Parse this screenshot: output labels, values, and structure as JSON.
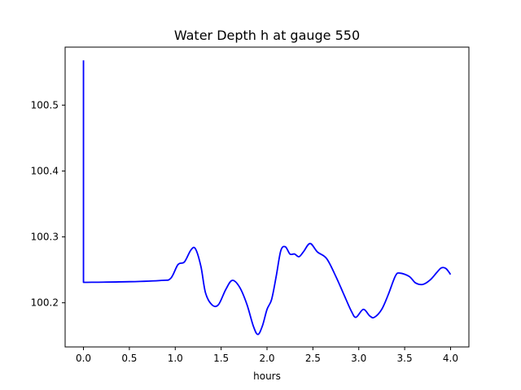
{
  "chart_data": {
    "type": "line",
    "title": "Water Depth h at gauge 550",
    "xlabel": "hours",
    "ylabel": "",
    "xlim": [
      -0.2,
      4.2
    ],
    "ylim": [
      100.133,
      100.588
    ],
    "grid": false,
    "legend": "none",
    "xticks": [
      0.0,
      0.5,
      1.0,
      1.5,
      2.0,
      2.5,
      3.0,
      3.5,
      4.0
    ],
    "xtick_labels": [
      "0.0",
      "0.5",
      "1.0",
      "1.5",
      "2.0",
      "2.5",
      "3.0",
      "3.5",
      "4.0"
    ],
    "yticks": [
      100.2,
      100.3,
      100.4,
      100.5
    ],
    "ytick_labels": [
      "100.2",
      "100.3",
      "100.4",
      "100.5"
    ],
    "series": [
      {
        "color": "#0000ff",
        "points": [
          [
            0.0,
            100.568
          ],
          [
            0.0,
            100.231
          ],
          [
            0.5,
            100.232
          ],
          [
            0.85,
            100.234
          ],
          [
            0.95,
            100.237
          ],
          [
            1.03,
            100.258
          ],
          [
            1.1,
            100.262
          ],
          [
            1.17,
            100.28
          ],
          [
            1.22,
            100.282
          ],
          [
            1.28,
            100.255
          ],
          [
            1.33,
            100.215
          ],
          [
            1.4,
            100.197
          ],
          [
            1.47,
            100.197
          ],
          [
            1.55,
            100.22
          ],
          [
            1.62,
            100.234
          ],
          [
            1.7,
            100.224
          ],
          [
            1.78,
            100.198
          ],
          [
            1.85,
            100.165
          ],
          [
            1.9,
            100.152
          ],
          [
            1.95,
            100.165
          ],
          [
            2.0,
            100.19
          ],
          [
            2.05,
            100.205
          ],
          [
            2.1,
            100.24
          ],
          [
            2.15,
            100.279
          ],
          [
            2.2,
            100.285
          ],
          [
            2.25,
            100.274
          ],
          [
            2.3,
            100.274
          ],
          [
            2.35,
            100.27
          ],
          [
            2.4,
            100.278
          ],
          [
            2.47,
            100.29
          ],
          [
            2.55,
            100.277
          ],
          [
            2.65,
            100.267
          ],
          [
            2.75,
            100.24
          ],
          [
            2.83,
            100.215
          ],
          [
            2.92,
            100.187
          ],
          [
            2.97,
            100.178
          ],
          [
            3.05,
            100.19
          ],
          [
            3.12,
            100.18
          ],
          [
            3.17,
            100.178
          ],
          [
            3.25,
            100.19
          ],
          [
            3.32,
            100.212
          ],
          [
            3.4,
            100.241
          ],
          [
            3.45,
            100.245
          ],
          [
            3.55,
            100.24
          ],
          [
            3.62,
            100.23
          ],
          [
            3.7,
            100.228
          ],
          [
            3.78,
            100.235
          ],
          [
            3.85,
            100.246
          ],
          [
            3.9,
            100.253
          ],
          [
            3.95,
            100.252
          ],
          [
            4.0,
            100.243
          ]
        ]
      }
    ]
  }
}
